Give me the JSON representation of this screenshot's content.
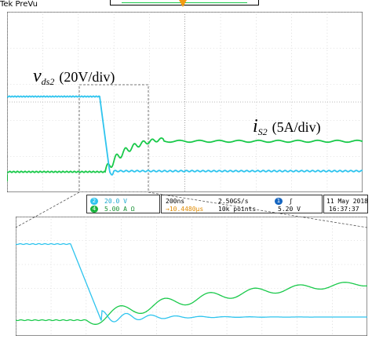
{
  "header": {
    "scope_label": "Tek PreVu"
  },
  "annotations": {
    "vds": {
      "symbol": "v",
      "subscript": "ds2",
      "scale": "(20V/div)"
    },
    "is": {
      "symbol": "i",
      "subscript": "S2",
      "scale": "(5A/div)"
    }
  },
  "channels": [
    {
      "number": "2",
      "scale": "20.0 V",
      "color": "#2ec4ee"
    },
    {
      "number": "4",
      "scale": "5.00 A Ω",
      "color": "#19b33c"
    }
  ],
  "timebase": {
    "time_per_div": "200ns",
    "sample_rate": "2.50GS/s",
    "trigger_position": "→10.4480µs",
    "record_length": "10k points"
  },
  "trigger": {
    "source": "1",
    "slope": "ʃ",
    "level": "5.20 V"
  },
  "timestamp": {
    "date": "11 May 2018",
    "time": "16:37:37"
  },
  "ground_markers": {
    "ch4": "4"
  },
  "colors": {
    "cyan_trace": "#2ec4ee",
    "green_trace": "#19c94a",
    "grid": "#555555",
    "trigger_marker": "#f39c12"
  }
}
